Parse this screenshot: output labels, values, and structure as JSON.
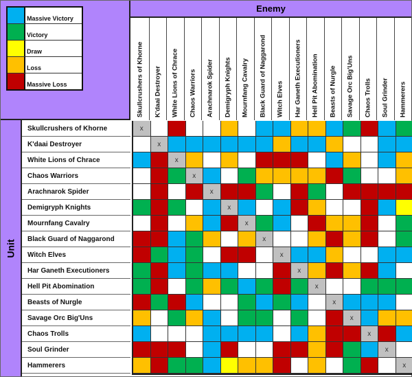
{
  "legend": [
    {
      "code": "B",
      "label": "Massive Victory",
      "color": "#00b0f0"
    },
    {
      "code": "G",
      "label": "Victory",
      "color": "#00b050"
    },
    {
      "code": "Y",
      "label": "Draw",
      "color": "#ffff00"
    },
    {
      "code": "O",
      "label": "Loss",
      "color": "#ffc000"
    },
    {
      "code": "R",
      "label": "Massive Loss",
      "color": "#c00000"
    }
  ],
  "header": {
    "enemy": "Enemy",
    "unit": "Unit"
  },
  "self_marker": "x",
  "columns": [
    "Skullcrushers of Khorne",
    "K'daai Destroyer",
    "White Lions of Chrace",
    "Chaos Warriors",
    "Arachnarok Spider",
    "Demigryph Knights",
    "Mournfang Cavalry",
    "Black Guard of Naggarond",
    "Witch Elves",
    "Har Ganeth Executioners",
    "Hell Pit Abomination",
    "Beasts of Nurgle",
    "Savage Orc Big'Uns",
    "Chaos Trolls",
    "Soul Grinder",
    "Hammerers"
  ],
  "rows": [
    {
      "unit": "Skullcrushers of Khorne",
      "results": [
        "X",
        "W",
        "R",
        "W",
        "W",
        "O",
        "W",
        "B",
        "B",
        "O",
        "O",
        "B",
        "G",
        "R",
        "B",
        "G"
      ]
    },
    {
      "unit": "K'daai Destroyer",
      "results": [
        "W",
        "X",
        "B",
        "B",
        "B",
        "B",
        "B",
        "B",
        "O",
        "B",
        "B",
        "O",
        "W",
        "W",
        "B",
        "B"
      ]
    },
    {
      "unit": "White Lions of Chrace",
      "results": [
        "B",
        "R",
        "X",
        "O",
        "W",
        "O",
        "W",
        "R",
        "R",
        "R",
        "W",
        "B",
        "O",
        "W",
        "B",
        "O"
      ]
    },
    {
      "unit": "Chaos Warriors",
      "results": [
        "W",
        "R",
        "G",
        "X",
        "B",
        "W",
        "G",
        "O",
        "O",
        "O",
        "O",
        "R",
        "G",
        "W",
        "W",
        "O"
      ]
    },
    {
      "unit": "Arachnarok Spider",
      "results": [
        "W",
        "R",
        "W",
        "R",
        "X",
        "R",
        "R",
        "G",
        "W",
        "R",
        "G",
        "W",
        "R",
        "R",
        "R",
        "R"
      ]
    },
    {
      "unit": "Demigryph Knights",
      "results": [
        "G",
        "R",
        "G",
        "W",
        "B",
        "X",
        "B",
        "W",
        "B",
        "R",
        "O",
        "W",
        "W",
        "R",
        "B",
        "Y"
      ]
    },
    {
      "unit": "Mournfang Cavalry",
      "results": [
        "W",
        "R",
        "W",
        "O",
        "B",
        "R",
        "X",
        "G",
        "B",
        "W",
        "R",
        "O",
        "O",
        "R",
        "W",
        "G"
      ]
    },
    {
      "unit": "Black Guard of Naggarond",
      "results": [
        "R",
        "R",
        "B",
        "G",
        "O",
        "W",
        "O",
        "X",
        "W",
        "W",
        "O",
        "R",
        "O",
        "R",
        "W",
        "G"
      ]
    },
    {
      "unit": "Witch Elves",
      "results": [
        "R",
        "G",
        "B",
        "G",
        "W",
        "R",
        "R",
        "W",
        "X",
        "B",
        "B",
        "O",
        "W",
        "W",
        "B",
        "B"
      ]
    },
    {
      "unit": "Har Ganeth Executioners",
      "results": [
        "G",
        "R",
        "B",
        "G",
        "B",
        "B",
        "W",
        "W",
        "R",
        "X",
        "O",
        "R",
        "O",
        "R",
        "B",
        "W"
      ]
    },
    {
      "unit": "Hell Pit Abomination",
      "results": [
        "G",
        "R",
        "W",
        "G",
        "O",
        "G",
        "B",
        "G",
        "R",
        "G",
        "X",
        "W",
        "W",
        "G",
        "G",
        "G"
      ]
    },
    {
      "unit": "Beasts of Nurgle",
      "results": [
        "R",
        "G",
        "R",
        "B",
        "W",
        "W",
        "G",
        "B",
        "G",
        "B",
        "W",
        "X",
        "B",
        "B",
        "B",
        "W"
      ]
    },
    {
      "unit": "Savage Orc Big'Uns",
      "results": [
        "O",
        "W",
        "G",
        "O",
        "B",
        "W",
        "G",
        "G",
        "W",
        "G",
        "W",
        "R",
        "X",
        "B",
        "O",
        "O"
      ]
    },
    {
      "unit": "Chaos Trolls",
      "results": [
        "B",
        "W",
        "W",
        "W",
        "B",
        "B",
        "B",
        "B",
        "W",
        "B",
        "O",
        "R",
        "R",
        "X",
        "R",
        "B"
      ]
    },
    {
      "unit": "Soul Grinder",
      "results": [
        "R",
        "R",
        "R",
        "W",
        "B",
        "R",
        "W",
        "W",
        "R",
        "R",
        "O",
        "R",
        "G",
        "B",
        "X",
        "W"
      ]
    },
    {
      "unit": "Hammerers",
      "results": [
        "O",
        "R",
        "G",
        "G",
        "B",
        "Y",
        "O",
        "O",
        "R",
        "W",
        "O",
        "W",
        "G",
        "R",
        "W",
        "X"
      ]
    }
  ]
}
